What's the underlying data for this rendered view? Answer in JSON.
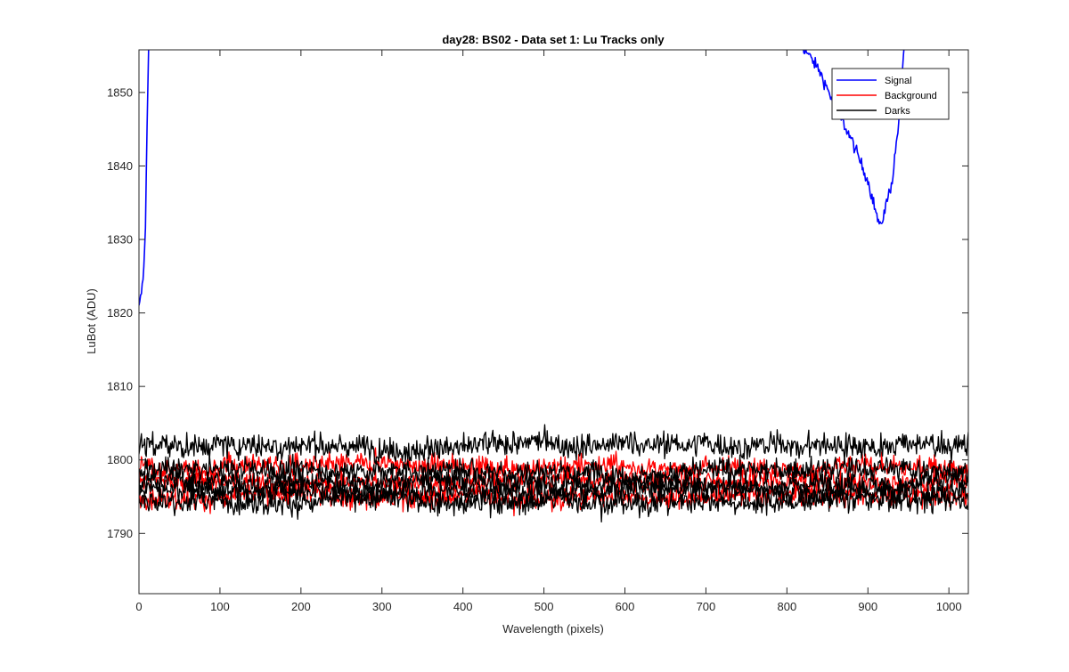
{
  "chart_data": {
    "type": "line",
    "title": "day28: BS02 - Data set 1: Lu Tracks only",
    "xlabel": "Wavelength (pixels)",
    "ylabel": "LuBot (ADU)",
    "xlim": [
      0,
      1024
    ],
    "ylim": [
      1781.8,
      1855.8
    ],
    "x_ticks": [
      0,
      100,
      200,
      300,
      400,
      500,
      600,
      700,
      800,
      900,
      1000
    ],
    "y_ticks": [
      1790,
      1800,
      1810,
      1820,
      1830,
      1840,
      1850
    ],
    "grid": false,
    "legend_position": "top-right",
    "series": [
      {
        "name": "Signal",
        "color": "#0000ff",
        "style": "noisy",
        "noise": 0.8,
        "points": [
          [
            0,
            1820.6
          ],
          [
            2,
            1822.0
          ],
          [
            4,
            1823.5
          ],
          [
            6,
            1826.0
          ],
          [
            8,
            1832.0
          ],
          [
            10,
            1845.0
          ],
          [
            12,
            1856.5
          ]
        ]
      },
      {
        "name": "Signal",
        "color": "#0000ff",
        "style": "noisy",
        "noise": 0.8,
        "points": [
          [
            818,
            1856.5
          ],
          [
            840,
            1853.0
          ],
          [
            860,
            1848.0
          ],
          [
            880,
            1843.5
          ],
          [
            900,
            1838.0
          ],
          [
            915,
            1831.5
          ],
          [
            930,
            1838.0
          ],
          [
            940,
            1848.0
          ],
          [
            945,
            1856.5
          ]
        ]
      },
      {
        "name": "Background",
        "color": "#ff0000",
        "style": "noise",
        "base": 1799.0,
        "amp": 1.6
      },
      {
        "name": "Background",
        "color": "#ff0000",
        "style": "noise",
        "base": 1797.3,
        "amp": 1.6
      },
      {
        "name": "Background",
        "color": "#ff0000",
        "style": "noise",
        "base": 1795.2,
        "amp": 1.6
      },
      {
        "name": "Darks",
        "color": "#000000",
        "style": "noise",
        "base": 1802.0,
        "amp": 1.8
      },
      {
        "name": "Darks",
        "color": "#000000",
        "style": "noise",
        "base": 1798.6,
        "amp": 1.7
      },
      {
        "name": "Darks",
        "color": "#000000",
        "style": "noise",
        "base": 1797.0,
        "amp": 1.7
      },
      {
        "name": "Darks",
        "color": "#000000",
        "style": "noise",
        "base": 1796.0,
        "amp": 1.7
      },
      {
        "name": "Darks",
        "color": "#000000",
        "style": "noise",
        "base": 1794.5,
        "amp": 1.7
      }
    ],
    "legend": [
      {
        "label": "Signal",
        "color": "#0000ff"
      },
      {
        "label": "Background",
        "color": "#ff0000"
      },
      {
        "label": "Darks",
        "color": "#000000"
      }
    ]
  }
}
